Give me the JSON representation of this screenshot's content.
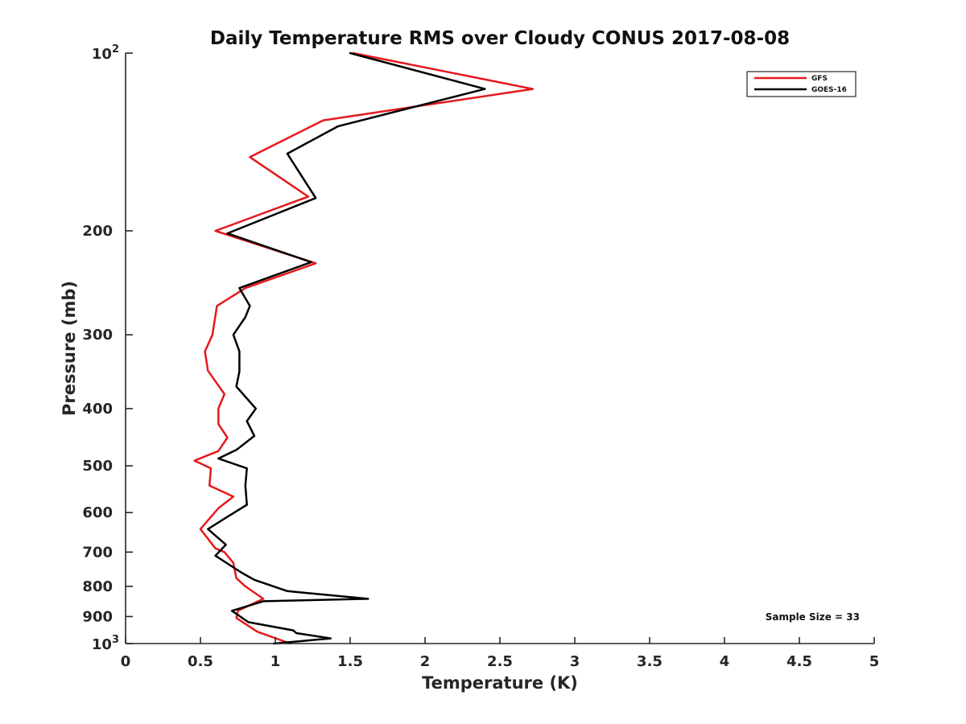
{
  "chart_data": {
    "type": "line",
    "title": "Daily Temperature RMS over Cloudy CONUS 2017-08-08",
    "xlabel": "Temperature (K)",
    "ylabel": "Pressure (mb)",
    "xlim": [
      0,
      5
    ],
    "ylim": [
      100,
      1000
    ],
    "y_scale": "log",
    "y_reversed": true,
    "x_ticks": [
      "0",
      "0.5",
      "1",
      "1.5",
      "2",
      "2.5",
      "3",
      "3.5",
      "4",
      "4.5",
      "5"
    ],
    "x_tick_values": [
      0,
      0.5,
      1,
      1.5,
      2,
      2.5,
      3,
      3.5,
      4,
      4.5,
      5
    ],
    "y_ticks": [
      {
        "value": 100,
        "base": "10",
        "exp": "2"
      },
      {
        "value": 200,
        "label": "200"
      },
      {
        "value": 300,
        "label": "300"
      },
      {
        "value": 400,
        "label": "400"
      },
      {
        "value": 500,
        "label": "500"
      },
      {
        "value": 600,
        "label": "600"
      },
      {
        "value": 700,
        "label": "700"
      },
      {
        "value": 800,
        "label": "800"
      },
      {
        "value": 900,
        "label": "900"
      },
      {
        "value": 1000,
        "base": "10",
        "exp": "3"
      }
    ],
    "grid": false,
    "legend_position": "top-right",
    "annotation": "Sample Size = 33",
    "series": [
      {
        "name": "GFS",
        "color": "#e41a1c",
        "points": [
          [
            1.52,
            100
          ],
          [
            2.72,
            115
          ],
          [
            1.32,
            130
          ],
          [
            0.83,
            150
          ],
          [
            1.22,
            175
          ],
          [
            0.6,
            200
          ],
          [
            1.27,
            227
          ],
          [
            0.8,
            250
          ],
          [
            0.61,
            268
          ],
          [
            0.58,
            300
          ],
          [
            0.53,
            320
          ],
          [
            0.55,
            345
          ],
          [
            0.66,
            378
          ],
          [
            0.62,
            400
          ],
          [
            0.62,
            425
          ],
          [
            0.68,
            448
          ],
          [
            0.62,
            472
          ],
          [
            0.46,
            490
          ],
          [
            0.57,
            505
          ],
          [
            0.56,
            540
          ],
          [
            0.72,
            564
          ],
          [
            0.62,
            590
          ],
          [
            0.5,
            640
          ],
          [
            0.6,
            690
          ],
          [
            0.66,
            700
          ],
          [
            0.72,
            730
          ],
          [
            0.74,
            775
          ],
          [
            0.8,
            800
          ],
          [
            0.92,
            840
          ],
          [
            0.75,
            880
          ],
          [
            0.74,
            905
          ],
          [
            0.88,
            955
          ],
          [
            1.1,
            1000
          ]
        ]
      },
      {
        "name": "GOES-16",
        "color": "#000000",
        "points": [
          [
            1.5,
            100
          ],
          [
            2.4,
            115
          ],
          [
            1.42,
            133
          ],
          [
            1.08,
            148
          ],
          [
            1.27,
            176
          ],
          [
            0.68,
            202
          ],
          [
            1.24,
            226
          ],
          [
            0.76,
            250
          ],
          [
            0.83,
            268
          ],
          [
            0.8,
            280
          ],
          [
            0.72,
            300
          ],
          [
            0.76,
            320
          ],
          [
            0.76,
            346
          ],
          [
            0.74,
            367
          ],
          [
            0.87,
            400
          ],
          [
            0.81,
            420
          ],
          [
            0.86,
            445
          ],
          [
            0.74,
            470
          ],
          [
            0.62,
            486
          ],
          [
            0.81,
            505
          ],
          [
            0.8,
            540
          ],
          [
            0.81,
            582
          ],
          [
            0.68,
            610
          ],
          [
            0.55,
            640
          ],
          [
            0.67,
            680
          ],
          [
            0.6,
            710
          ],
          [
            0.78,
            760
          ],
          [
            0.86,
            780
          ],
          [
            1.08,
            815
          ],
          [
            1.62,
            840
          ],
          [
            0.92,
            848
          ],
          [
            0.71,
            880
          ],
          [
            0.82,
            920
          ],
          [
            1.12,
            950
          ],
          [
            1.14,
            960
          ],
          [
            1.37,
            980
          ],
          [
            0.99,
            1000
          ]
        ]
      }
    ]
  }
}
